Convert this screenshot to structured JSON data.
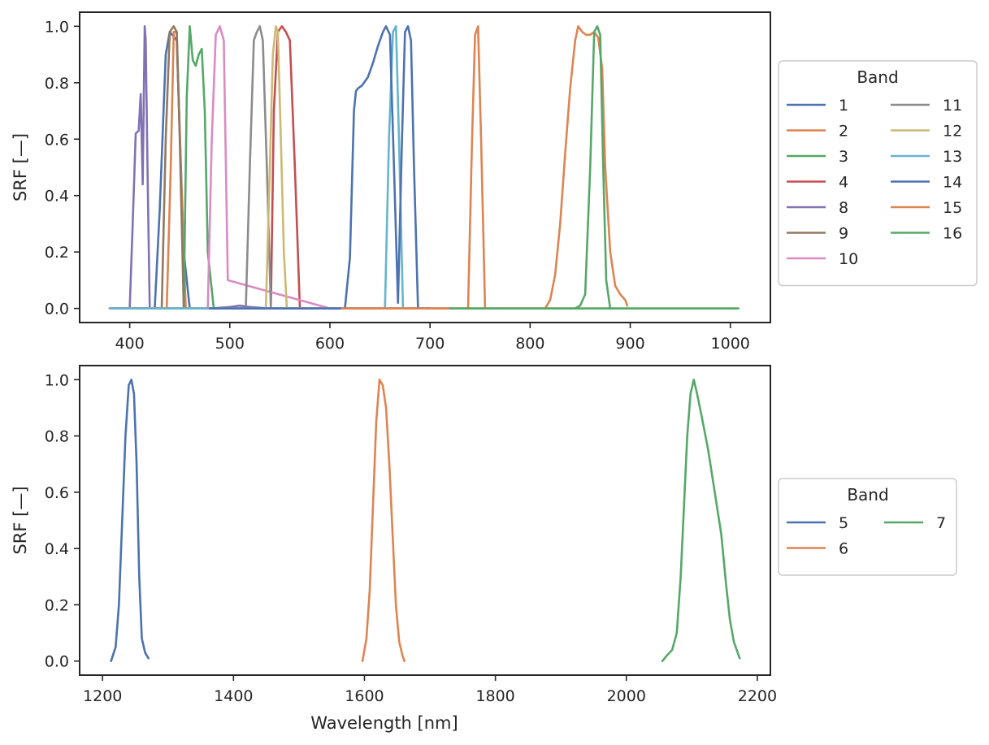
{
  "chart_data": [
    {
      "type": "line",
      "xlabel": "",
      "ylabel": "SRF [—]",
      "xlim": [
        350,
        1040
      ],
      "ylim": [
        -0.05,
        1.05
      ],
      "xticks": [
        400,
        500,
        600,
        700,
        800,
        900,
        1000
      ],
      "yticks": [
        0.0,
        0.2,
        0.4,
        0.6,
        0.8,
        1.0
      ],
      "grid": false,
      "legend": {
        "title": "Band",
        "columns": 2,
        "placement": "outside-right"
      },
      "series": [
        {
          "name": "1",
          "color": "#4c72b0",
          "x": [
            380,
            425,
            430,
            436,
            440,
            447,
            454,
            460
          ],
          "y": [
            0,
            0,
            0.35,
            0.9,
            0.98,
            0.95,
            0.2,
            0
          ]
        },
        {
          "name": "2",
          "color": "#dd8452",
          "x": [
            380,
            437,
            441,
            444,
            447,
            451,
            456,
            880
          ],
          "y": [
            0.0,
            0.0,
            0.5,
            0.98,
            0.98,
            0.5,
            0.0,
            0.0
          ]
        },
        {
          "name": "3",
          "color": "#55a868",
          "x": [
            380,
            454,
            457,
            460,
            463,
            466,
            469,
            472,
            475,
            478,
            484,
            1008
          ],
          "y": [
            0.0,
            0.0,
            0.75,
            1.0,
            0.88,
            0.86,
            0.9,
            0.92,
            0.7,
            0.2,
            0.0,
            0.0
          ]
        },
        {
          "name": "4",
          "color": "#c44e52",
          "x": [
            380,
            541,
            544,
            548,
            552,
            556,
            560,
            565,
            570,
            720
          ],
          "y": [
            0.0,
            0.0,
            0.7,
            0.98,
            1.0,
            0.98,
            0.95,
            0.5,
            0.0,
            0.0
          ]
        },
        {
          "name": "8",
          "color": "#8172b3",
          "x": [
            380,
            400,
            403,
            406,
            409,
            411,
            413,
            415,
            416,
            418,
            420,
            480,
            500,
            510,
            520,
            540,
            700
          ],
          "y": [
            0.0,
            0.0,
            0.3,
            0.62,
            0.63,
            0.76,
            0.44,
            1.0,
            0.95,
            0.45,
            0.0,
            0.0,
            0.005,
            0.01,
            0.005,
            0.0,
            0.0
          ]
        },
        {
          "name": "9",
          "color": "#937860",
          "x": [
            380,
            432,
            436,
            440,
            444,
            447,
            450,
            454,
            500
          ],
          "y": [
            0.0,
            0.0,
            0.6,
            0.98,
            1.0,
            0.98,
            0.6,
            0.0,
            0.0
          ]
        },
        {
          "name": "10",
          "color": "#da8bc3",
          "x": [
            380,
            478,
            482,
            486,
            490,
            494,
            498,
            600
          ],
          "y": [
            0.0,
            0.0,
            0.6,
            0.97,
            1.0,
            0.95,
            0.1,
            0.0
          ]
        },
        {
          "name": "11",
          "color": "#8c8c8c",
          "x": [
            380,
            516,
            520,
            524,
            527,
            530,
            533,
            537,
            541,
            600
          ],
          "y": [
            0.0,
            0.0,
            0.5,
            0.95,
            0.98,
            1.0,
            0.95,
            0.5,
            0.0,
            0.0
          ]
        },
        {
          "name": "12",
          "color": "#ccb974",
          "x": [
            380,
            536,
            540,
            543,
            546,
            548,
            551,
            554,
            557,
            700
          ],
          "y": [
            0.0,
            0.0,
            0.5,
            0.9,
            1.0,
            0.98,
            0.6,
            0.2,
            0.0,
            0.0
          ]
        },
        {
          "name": "13",
          "color": "#64b5cd",
          "x": [
            380,
            655,
            659,
            663,
            666,
            669,
            673,
            700
          ],
          "y": [
            0.0,
            0.0,
            0.6,
            0.98,
            1.0,
            0.6,
            0.0,
            0.0
          ]
        },
        {
          "name": "14",
          "color": "#4c72b0",
          "x": [
            480,
            615,
            620,
            624,
            626,
            628,
            632,
            638,
            643,
            648,
            653,
            656,
            660,
            664,
            668,
            672,
            675,
            678,
            681,
            684,
            688,
            700
          ],
          "y": [
            0.0,
            0.0,
            0.18,
            0.7,
            0.77,
            0.78,
            0.79,
            0.82,
            0.87,
            0.93,
            0.98,
            1.0,
            0.97,
            0.5,
            0.02,
            0.6,
            0.98,
            1.0,
            0.95,
            0.5,
            0.0,
            0.0
          ]
        },
        {
          "name": "15",
          "color": "#dd8452",
          "x": [
            612,
            738,
            742,
            745,
            748,
            751,
            755,
            815,
            820,
            825,
            830,
            835,
            840,
            845,
            848,
            852,
            856,
            860,
            864,
            868,
            872,
            875,
            880,
            885,
            890,
            895,
            897
          ],
          "y": [
            0.0,
            0.0,
            0.6,
            0.97,
            1.0,
            0.6,
            0.0,
            0.0,
            0.03,
            0.12,
            0.3,
            0.55,
            0.78,
            0.95,
            1.0,
            0.98,
            0.97,
            0.97,
            0.98,
            0.96,
            0.85,
            0.5,
            0.2,
            0.08,
            0.05,
            0.03,
            0.01
          ]
        },
        {
          "name": "16",
          "color": "#55a868",
          "x": [
            720,
            845,
            850,
            855,
            860,
            864,
            867,
            870,
            873,
            876,
            880,
            1008
          ],
          "y": [
            0.0,
            0.0,
            0.01,
            0.05,
            0.5,
            0.98,
            1.0,
            0.97,
            0.5,
            0.1,
            0.0,
            0.0
          ]
        }
      ]
    },
    {
      "type": "line",
      "xlabel": "Wavelength [nm]",
      "ylabel": "SRF [—]",
      "xlim": [
        1165,
        2220
      ],
      "ylim": [
        -0.05,
        1.05
      ],
      "xticks": [
        1200,
        1400,
        1600,
        1800,
        2000,
        2200
      ],
      "yticks": [
        0.0,
        0.2,
        0.4,
        0.6,
        0.8,
        1.0
      ],
      "grid": false,
      "legend": {
        "title": "Band",
        "columns": 2,
        "placement": "outside-right"
      },
      "series": [
        {
          "name": "5",
          "color": "#4c72b0",
          "x": [
            1213,
            1220,
            1225,
            1230,
            1235,
            1240,
            1244,
            1248,
            1252,
            1256,
            1260,
            1265,
            1270
          ],
          "y": [
            0.0,
            0.05,
            0.2,
            0.5,
            0.8,
            0.98,
            1.0,
            0.95,
            0.7,
            0.3,
            0.08,
            0.03,
            0.01
          ]
        },
        {
          "name": "6",
          "color": "#dd8452",
          "x": [
            1597,
            1603,
            1608,
            1613,
            1618,
            1623,
            1628,
            1633,
            1638,
            1643,
            1648,
            1653,
            1658,
            1661
          ],
          "y": [
            0.0,
            0.08,
            0.25,
            0.55,
            0.85,
            1.0,
            0.98,
            0.9,
            0.7,
            0.45,
            0.2,
            0.07,
            0.02,
            0.0
          ]
        },
        {
          "name": "7",
          "color": "#55a868",
          "x": [
            2055,
            2062,
            2070,
            2077,
            2083,
            2088,
            2093,
            2098,
            2103,
            2108,
            2115,
            2125,
            2135,
            2145,
            2152,
            2158,
            2164,
            2170,
            2173
          ],
          "y": [
            0.0,
            0.02,
            0.04,
            0.1,
            0.3,
            0.55,
            0.8,
            0.95,
            1.0,
            0.95,
            0.87,
            0.75,
            0.6,
            0.45,
            0.28,
            0.15,
            0.07,
            0.03,
            0.01
          ]
        }
      ]
    }
  ]
}
